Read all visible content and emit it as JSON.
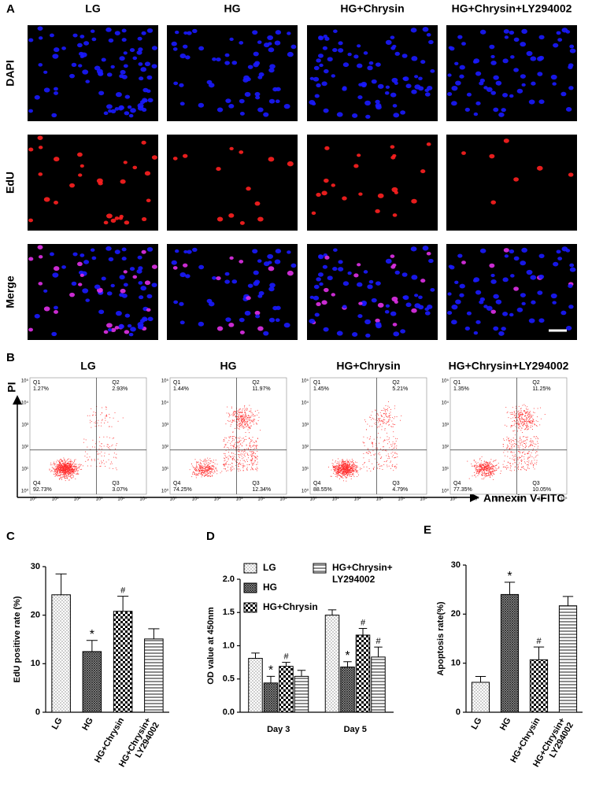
{
  "panel_a": {
    "label": "A",
    "columns": [
      "LG",
      "HG",
      "HG+Chrysin",
      "HG+Chrysin+LY294002"
    ],
    "rows": [
      "DAPI",
      "EdU",
      "Merge"
    ]
  },
  "panel_b": {
    "label": "B",
    "columns": [
      "LG",
      "HG",
      "HG+Chrysin",
      "HG+Chrysin+LY294002"
    ],
    "y_label": "PI",
    "x_label": "Annexin V-FITC",
    "axis_ticks": [
      "10⁰",
      "10¹",
      "10²",
      "10³",
      "10⁴",
      "10⁵"
    ],
    "plots": [
      {
        "quadrants": [
          {
            "name": "Q1",
            "value": "1.27%"
          },
          {
            "name": "Q2",
            "value": "2.93%"
          },
          {
            "name": "Q3",
            "value": "3.07%"
          },
          {
            "name": "Q4",
            "value": "92.73%"
          }
        ]
      },
      {
        "quadrants": [
          {
            "name": "Q1",
            "value": "1.44%"
          },
          {
            "name": "Q2",
            "value": "11.97%"
          },
          {
            "name": "Q3",
            "value": "12.34%"
          },
          {
            "name": "Q4",
            "value": "74.25%"
          }
        ]
      },
      {
        "quadrants": [
          {
            "name": "Q1",
            "value": "1.45%"
          },
          {
            "name": "Q2",
            "value": "5.21%"
          },
          {
            "name": "Q3",
            "value": "4.79%"
          },
          {
            "name": "Q4",
            "value": "88.55%"
          }
        ]
      },
      {
        "quadrants": [
          {
            "name": "Q1",
            "value": "1.35%"
          },
          {
            "name": "Q2",
            "value": "11.25%"
          },
          {
            "name": "Q3",
            "value": "10.05%"
          },
          {
            "name": "Q4",
            "value": "77.35%"
          }
        ]
      }
    ]
  },
  "chart_data": [
    {
      "type": "bar",
      "label": "C",
      "ylabel": "EdU positive rate (%)",
      "categories": [
        "LG",
        "HG",
        "HG+Chrysin",
        [
          "HG+Chrysin+",
          "LY294002"
        ]
      ],
      "values": [
        24.2,
        12.5,
        20.8,
        15.1
      ],
      "errors": [
        4.3,
        2.3,
        3.1,
        2.1
      ],
      "markers": [
        null,
        "*",
        "#",
        null
      ],
      "patterns": [
        "dots",
        "grid",
        "checker",
        "hlines"
      ],
      "ylim": [
        0,
        30
      ],
      "yticks": [
        0,
        10,
        20,
        30
      ]
    },
    {
      "type": "grouped_bar",
      "label": "D",
      "ylabel": "OD value at 450nm",
      "categories": [
        "Day 3",
        "Day 5"
      ],
      "series": [
        {
          "name": [
            "LG"
          ],
          "pattern": "dots",
          "values": [
            0.81,
            1.46
          ],
          "errors": [
            0.08,
            0.08
          ],
          "markers": [
            null,
            null
          ]
        },
        {
          "name": [
            "HG"
          ],
          "pattern": "grid",
          "values": [
            0.44,
            0.68
          ],
          "errors": [
            0.1,
            0.08
          ],
          "markers": [
            "*",
            "*"
          ]
        },
        {
          "name": [
            "HG+Chrysin"
          ],
          "pattern": "checker",
          "values": [
            0.69,
            1.16
          ],
          "errors": [
            0.06,
            0.1
          ],
          "markers": [
            "#",
            "#"
          ]
        },
        {
          "name": [
            "HG+Chrysin+",
            "LY294002"
          ],
          "pattern": "hlines",
          "values": [
            0.54,
            0.83
          ],
          "errors": [
            0.09,
            0.15
          ],
          "markers": [
            null,
            "#"
          ]
        }
      ],
      "ylim": [
        0,
        2
      ],
      "yticks": [
        {
          "value": 0,
          "label": "0.0"
        },
        0.5,
        {
          "value": 1,
          "label": "1.0"
        },
        1.5,
        {
          "value": 2,
          "label": "2.0"
        }
      ]
    },
    {
      "type": "bar",
      "label": "E",
      "ylabel": "Apoptosis  rate(%)",
      "categories": [
        "LG",
        "HG",
        "HG+Chrysin",
        [
          "HG+Chrysin+",
          "LY294002"
        ]
      ],
      "values": [
        6.1,
        24.0,
        10.7,
        21.7
      ],
      "errors": [
        1.2,
        2.5,
        2.6,
        1.9
      ],
      "markers": [
        null,
        "*",
        "#",
        null
      ],
      "patterns": [
        "dots",
        "grid",
        "checker",
        "hlines"
      ],
      "ylim": [
        0,
        30
      ],
      "yticks": [
        0,
        10,
        20,
        30
      ]
    }
  ]
}
